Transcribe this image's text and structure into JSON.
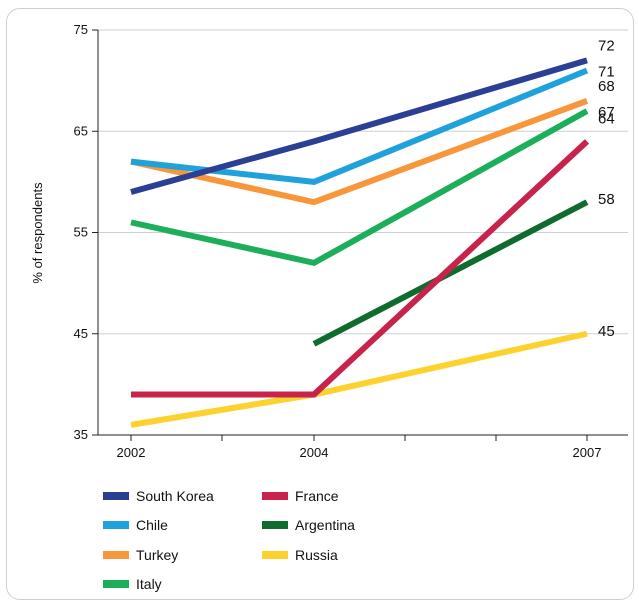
{
  "chart_data": {
    "type": "line",
    "title": "",
    "xlabel": "",
    "ylabel": "% of respondents",
    "x": [
      2002,
      2004,
      2007
    ],
    "ylim": [
      35,
      75
    ],
    "yticks": [
      35,
      45,
      55,
      65,
      75
    ],
    "grid": "horizontal",
    "legend_position": "bottom",
    "series": [
      {
        "name": "South Korea",
        "color": "#2B3F95",
        "values": [
          59,
          64,
          null
        ],
        "end_value": 72,
        "end_label": "72"
      },
      {
        "name": "Chile",
        "color": "#1FA2DC",
        "values": [
          62,
          60,
          null
        ],
        "end_value": 71,
        "end_label": "71"
      },
      {
        "name": "Turkey",
        "color": "#F7963B",
        "values": [
          62,
          58,
          null
        ],
        "end_value": 68,
        "end_label": "68"
      },
      {
        "name": "Italy",
        "color": "#1DAE5B",
        "values": [
          56,
          52,
          null
        ],
        "end_value": 67,
        "end_label": "67"
      },
      {
        "name": "France",
        "color": "#C8234B",
        "values": [
          39,
          39,
          null
        ],
        "end_value": 64,
        "end_label": "64"
      },
      {
        "name": "Argentina",
        "color": "#0F6B2E",
        "values": [
          null,
          44,
          null
        ],
        "end_value": 58,
        "end_label": "58"
      },
      {
        "name": "Russia",
        "color": "#FDD22E",
        "values": [
          36,
          39,
          null
        ],
        "end_value": 45,
        "end_label": "45"
      }
    ]
  }
}
